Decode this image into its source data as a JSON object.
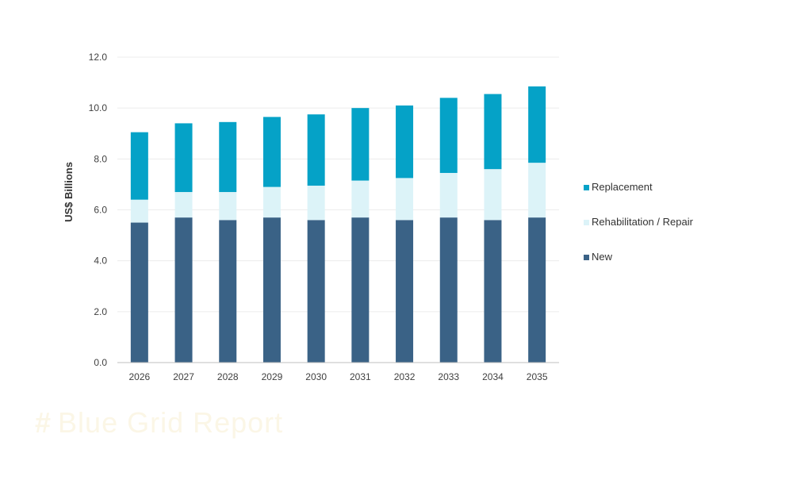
{
  "watermark": {
    "text": "Blue Grid Report"
  },
  "chart_data": {
    "type": "bar",
    "stacked": true,
    "categories": [
      "2026",
      "2027",
      "2028",
      "2029",
      "2030",
      "2031",
      "2032",
      "2033",
      "2034",
      "2035"
    ],
    "series": [
      {
        "name": "New",
        "color": "#3a6286",
        "values": [
          5.5,
          5.7,
          5.6,
          5.7,
          5.6,
          5.7,
          5.6,
          5.7,
          5.6,
          5.7
        ]
      },
      {
        "name": "Rehabilitation / Repair",
        "color": "#dcf3f8",
        "values": [
          0.9,
          1.0,
          1.1,
          1.2,
          1.35,
          1.45,
          1.65,
          1.75,
          2.0,
          2.15
        ]
      },
      {
        "name": "Replacement",
        "color": "#05a2c7",
        "values": [
          2.65,
          2.7,
          2.75,
          2.75,
          2.8,
          2.85,
          2.85,
          2.95,
          2.95,
          3.0
        ]
      }
    ],
    "ylabel": "US$ Billions",
    "xlabel": "",
    "ylim": [
      0,
      12
    ],
    "yticks": [
      "0.0",
      "2.0",
      "4.0",
      "6.0",
      "8.0",
      "10.0",
      "12.0"
    ],
    "grid": true,
    "legend": {
      "position": "right",
      "entries": [
        "Replacement",
        "Rehabilitation / Repair",
        "New"
      ]
    }
  }
}
